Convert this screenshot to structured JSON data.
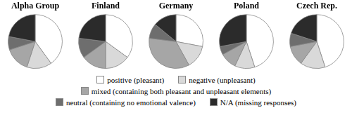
{
  "chart_data": [
    {
      "type": "pie",
      "title": "Alpha Group",
      "categories": [
        "positive (pleasant)",
        "negative (unpleasant)",
        "mixed (containing both pleasant and unpleasant elements)",
        "neutral (containing no emotional valence)",
        "N/A (missing responses)"
      ],
      "values": [
        40,
        15,
        15,
        8,
        22
      ],
      "colors": [
        "#ffffff",
        "#d9d9d9",
        "#a6a6a6",
        "#6e6e6e",
        "#2b2b2b"
      ],
      "legend": "bottom"
    },
    {
      "type": "pie",
      "title": "Finland",
      "categories": [
        "positive (pleasant)",
        "negative (unpleasant)",
        "mixed (containing both pleasant and unpleasant elements)",
        "neutral (containing no emotional valence)",
        "N/A (missing responses)"
      ],
      "values": [
        35,
        15,
        15,
        12,
        23
      ],
      "colors": [
        "#ffffff",
        "#d9d9d9",
        "#a6a6a6",
        "#6e6e6e",
        "#2b2b2b"
      ],
      "legend": "bottom"
    },
    {
      "type": "pie",
      "title": "Germany",
      "categories": [
        "positive (pleasant)",
        "negative (unpleasant)",
        "mixed (containing both pleasant and unpleasant elements)",
        "neutral (containing no emotional valence)",
        "N/A (missing responses)"
      ],
      "values": [
        28,
        14,
        35,
        9,
        14
      ],
      "colors": [
        "#ffffff",
        "#d9d9d9",
        "#a6a6a6",
        "#6e6e6e",
        "#2b2b2b"
      ],
      "legend": "bottom"
    },
    {
      "type": "pie",
      "title": "Poland",
      "categories": [
        "positive (pleasant)",
        "negative (unpleasant)",
        "mixed (containing both pleasant and unpleasant elements)",
        "neutral (containing no emotional valence)",
        "N/A (missing responses)"
      ],
      "values": [
        45,
        12,
        10,
        5,
        28
      ],
      "colors": [
        "#ffffff",
        "#d9d9d9",
        "#a6a6a6",
        "#6e6e6e",
        "#2b2b2b"
      ],
      "legend": "bottom"
    },
    {
      "type": "pie",
      "title": "Czech Rep.",
      "categories": [
        "positive (pleasant)",
        "negative (unpleasant)",
        "mixed (containing both pleasant and unpleasant elements)",
        "neutral (containing no emotional valence)",
        "N/A (missing responses)"
      ],
      "values": [
        45,
        15,
        12,
        8,
        20
      ],
      "colors": [
        "#ffffff",
        "#d9d9d9",
        "#a6a6a6",
        "#6e6e6e",
        "#2b2b2b"
      ],
      "legend": "bottom"
    }
  ]
}
